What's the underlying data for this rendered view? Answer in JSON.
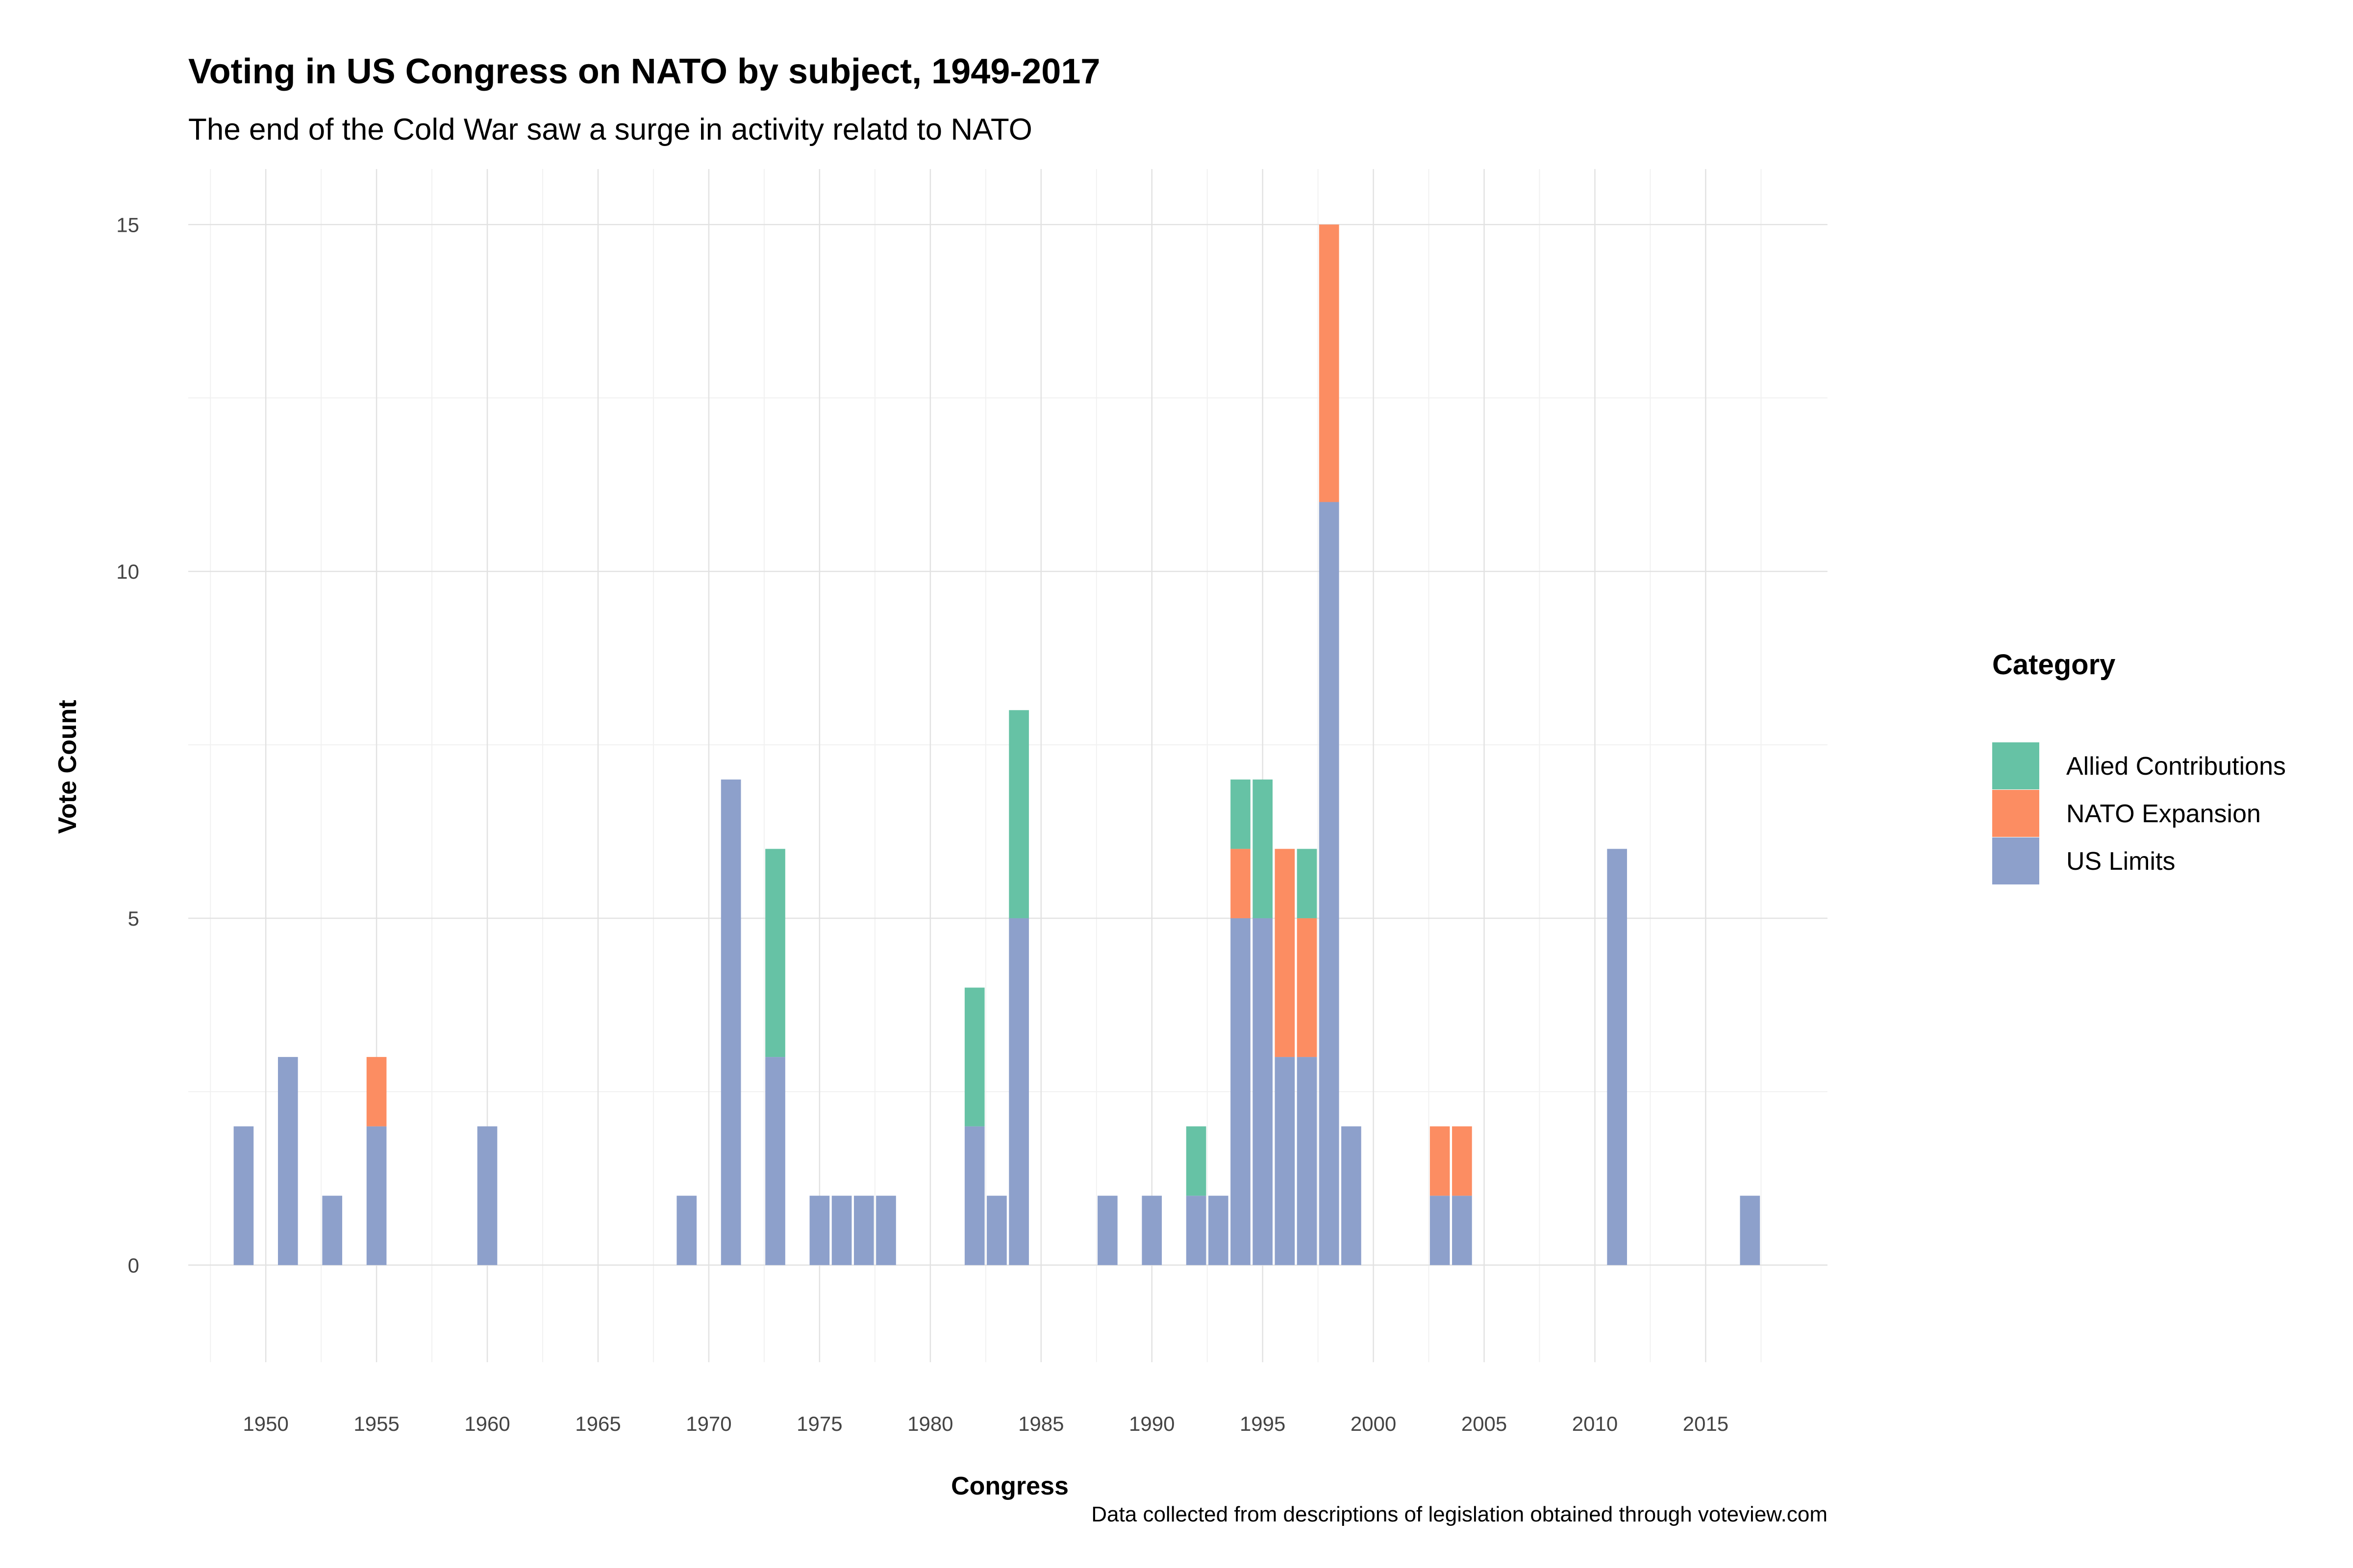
{
  "chart_data": {
    "type": "bar",
    "stacked": true,
    "title": "Voting in US Congress on NATO by subject, 1949-2017",
    "subtitle": "The end of the Cold War saw a surge in activity relatd to NATO",
    "xlabel": "Congress",
    "ylabel": "Vote Count",
    "caption": "Data collected from descriptions of legislation obtained through voteview.com",
    "xlim": [
      1946.5,
      2020.5
    ],
    "ylim": [
      -1.4,
      15.8
    ],
    "x_ticks": [
      1950,
      1955,
      1960,
      1965,
      1970,
      1975,
      1980,
      1985,
      1990,
      1995,
      2000,
      2005,
      2010,
      2015
    ],
    "y_ticks": [
      0,
      5,
      10,
      15
    ],
    "grid": true,
    "legend": {
      "title": "Category",
      "position": "right"
    },
    "series": [
      {
        "name": "US Limits",
        "color": "#8DA0CB",
        "points": [
          {
            "x": 1949,
            "y": 2
          },
          {
            "x": 1951,
            "y": 3
          },
          {
            "x": 1953,
            "y": 1
          },
          {
            "x": 1955,
            "y": 2
          },
          {
            "x": 1960,
            "y": 2
          },
          {
            "x": 1969,
            "y": 1
          },
          {
            "x": 1971,
            "y": 7
          },
          {
            "x": 1973,
            "y": 3
          },
          {
            "x": 1975,
            "y": 1
          },
          {
            "x": 1976,
            "y": 1
          },
          {
            "x": 1977,
            "y": 1
          },
          {
            "x": 1978,
            "y": 1
          },
          {
            "x": 1982,
            "y": 2
          },
          {
            "x": 1983,
            "y": 1
          },
          {
            "x": 1984,
            "y": 5
          },
          {
            "x": 1988,
            "y": 1
          },
          {
            "x": 1990,
            "y": 1
          },
          {
            "x": 1992,
            "y": 1
          },
          {
            "x": 1993,
            "y": 1
          },
          {
            "x": 1994,
            "y": 5
          },
          {
            "x": 1995,
            "y": 5
          },
          {
            "x": 1996,
            "y": 3
          },
          {
            "x": 1997,
            "y": 3
          },
          {
            "x": 1998,
            "y": 11
          },
          {
            "x": 1999,
            "y": 2
          },
          {
            "x": 2003,
            "y": 1
          },
          {
            "x": 2004,
            "y": 1
          },
          {
            "x": 2011,
            "y": 6
          },
          {
            "x": 2017,
            "y": 1
          }
        ]
      },
      {
        "name": "NATO Expansion",
        "color": "#FC8D62",
        "points": [
          {
            "x": 1955,
            "y": 1
          },
          {
            "x": 1994,
            "y": 1
          },
          {
            "x": 1996,
            "y": 3
          },
          {
            "x": 1997,
            "y": 2
          },
          {
            "x": 1998,
            "y": 4
          },
          {
            "x": 2003,
            "y": 1
          },
          {
            "x": 2004,
            "y": 1
          }
        ]
      },
      {
        "name": "Allied Contributions",
        "color": "#66C2A5",
        "points": [
          {
            "x": 1973,
            "y": 3
          },
          {
            "x": 1982,
            "y": 2
          },
          {
            "x": 1984,
            "y": 3
          },
          {
            "x": 1992,
            "y": 1
          },
          {
            "x": 1994,
            "y": 1
          },
          {
            "x": 1995,
            "y": 2
          },
          {
            "x": 1997,
            "y": 1
          }
        ]
      }
    ],
    "legend_order": [
      "Allied Contributions",
      "NATO Expansion",
      "US Limits"
    ]
  }
}
